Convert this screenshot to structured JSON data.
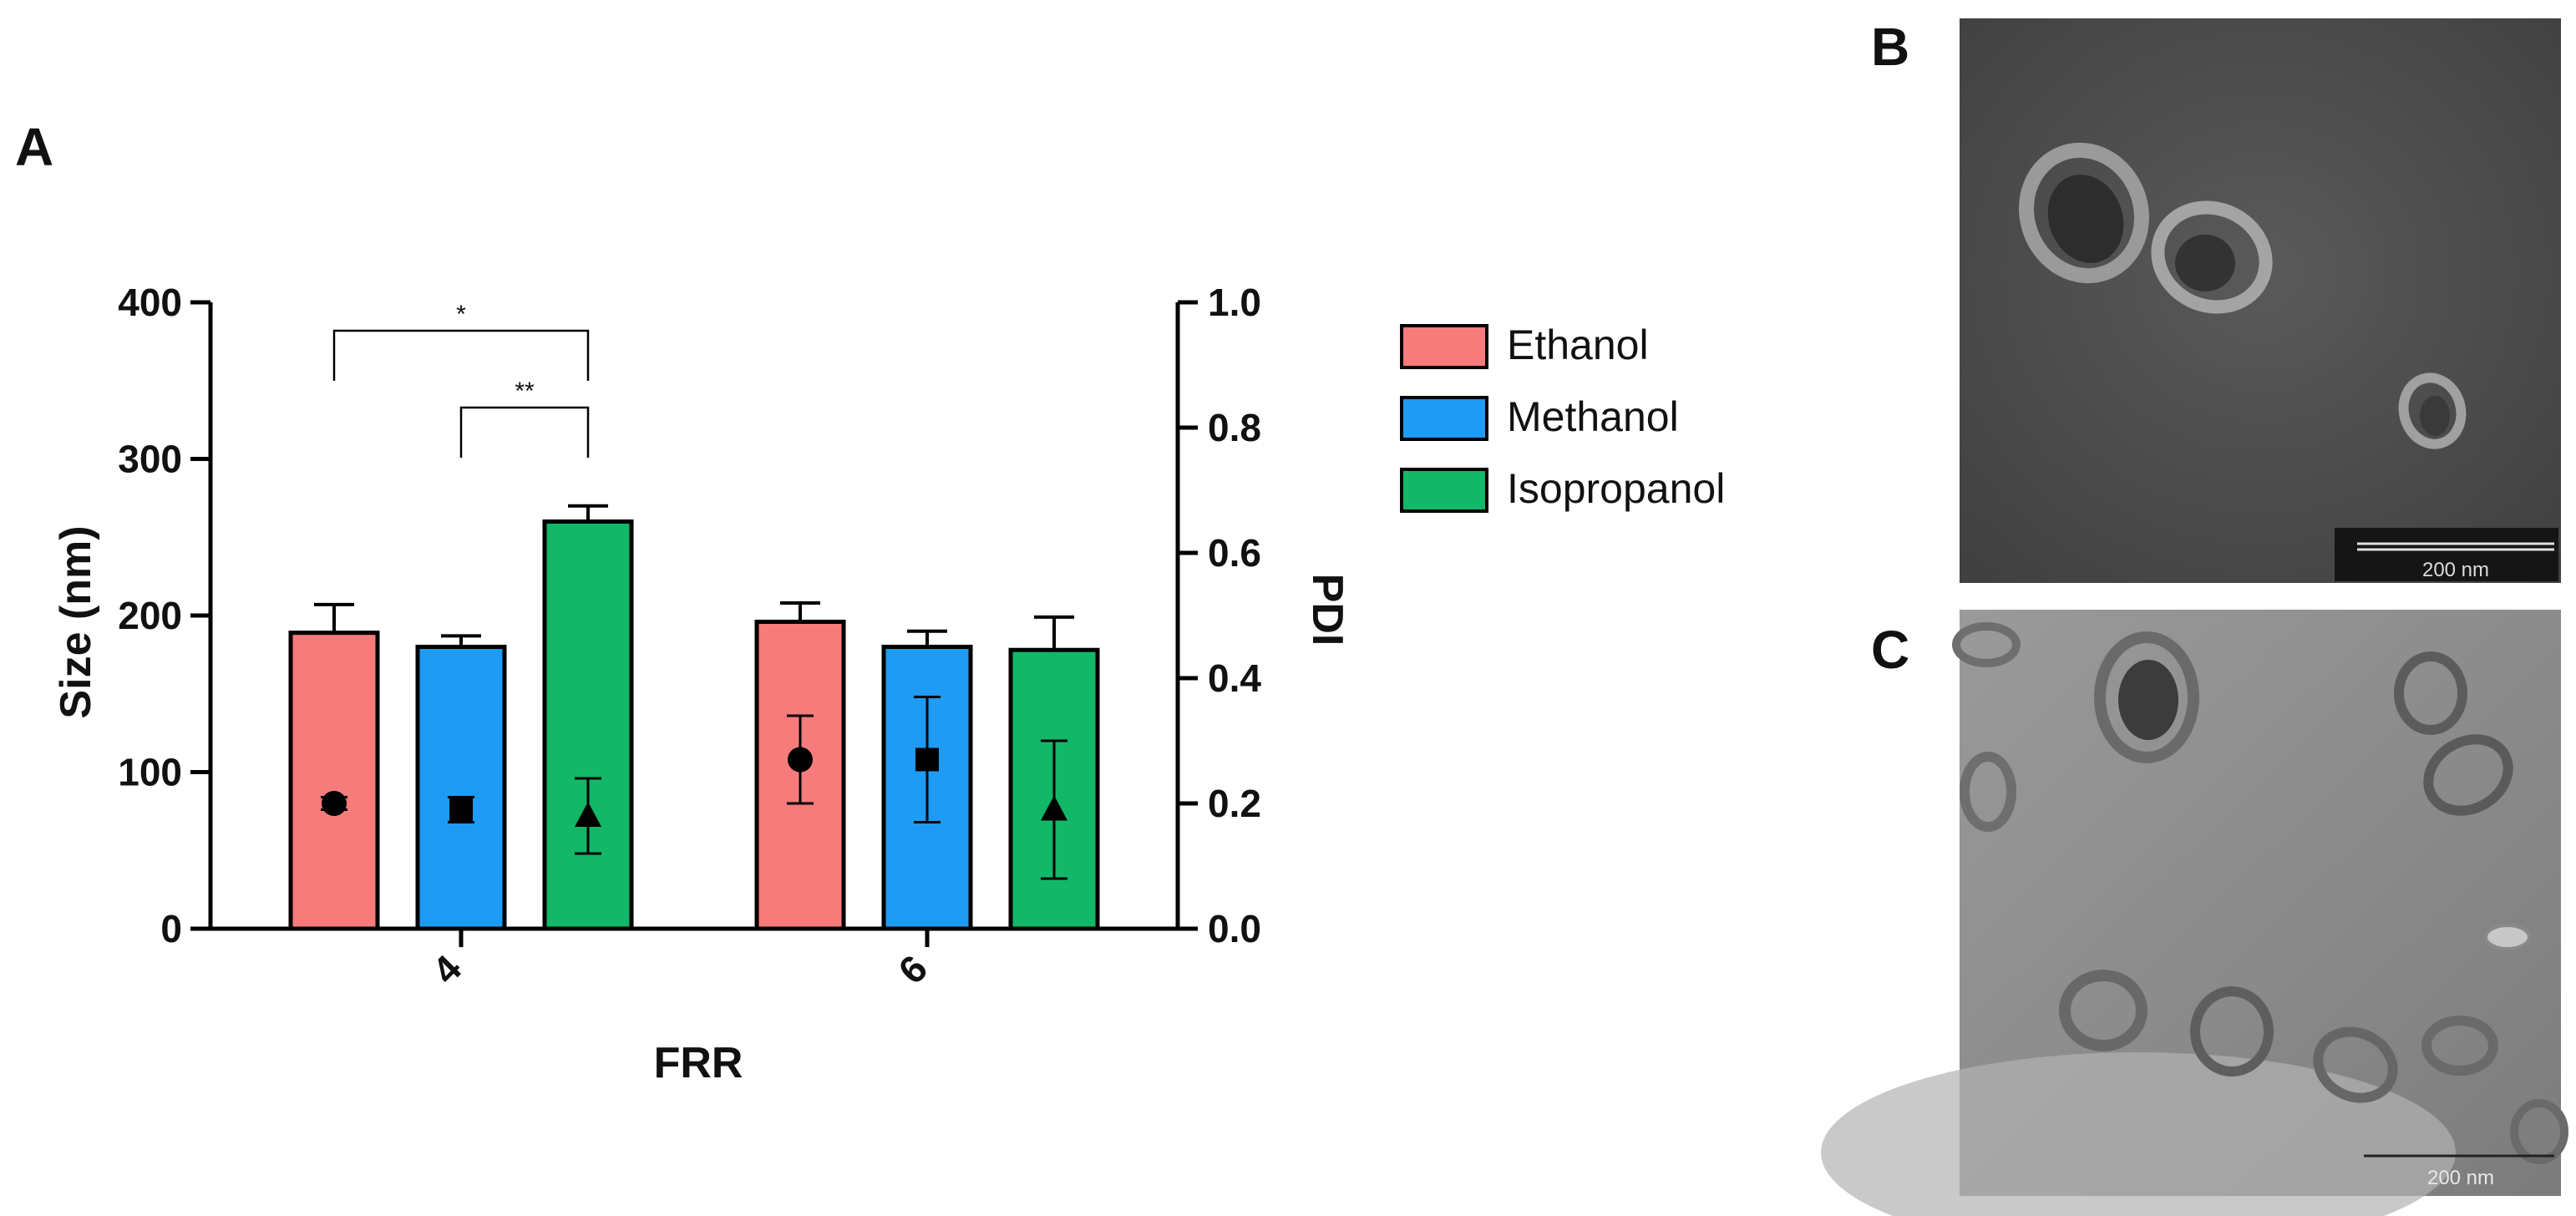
{
  "panels": {
    "a_label": "A",
    "b_label": "B",
    "c_label": "C"
  },
  "colors": {
    "Ethanol": "#f87b7b",
    "Methanol": "#1e9bf5",
    "Isopropanol": "#12b867"
  },
  "chart_data": {
    "type": "bar",
    "xlabel": "FRR",
    "ylabel": "Size (nm)",
    "y2label": "PDI",
    "categories": [
      "4",
      "6"
    ],
    "ylim": [
      0,
      400
    ],
    "yticks": [
      0,
      100,
      200,
      300,
      400
    ],
    "y2lim": [
      0.0,
      1.0
    ],
    "y2ticks": [
      "0.0",
      "0.2",
      "0.4",
      "0.6",
      "0.8",
      "1.0"
    ],
    "legend": [
      "Ethanol",
      "Methanol",
      "Isopropanol"
    ],
    "series": [
      {
        "name": "Ethanol",
        "size": [
          189,
          196
        ],
        "size_err": [
          18,
          12
        ],
        "pdi": [
          0.2,
          0.27
        ],
        "pdi_err": [
          0.01,
          0.07
        ],
        "marker": "circle"
      },
      {
        "name": "Methanol",
        "size": [
          180,
          180
        ],
        "size_err": [
          7,
          10
        ],
        "pdi": [
          0.19,
          0.27
        ],
        "pdi_err": [
          0.02,
          0.1
        ],
        "marker": "square"
      },
      {
        "name": "Isopropanol",
        "size": [
          260,
          178
        ],
        "size_err": [
          10,
          21
        ],
        "pdi": [
          0.18,
          0.19
        ],
        "pdi_err": [
          0.06,
          0.11
        ],
        "marker": "triangle"
      }
    ],
    "significance": [
      {
        "category": "4",
        "from": "Ethanol",
        "to": "Isopropanol",
        "label": "*"
      },
      {
        "category": "4",
        "from": "Methanol",
        "to": "Isopropanol",
        "label": "**"
      }
    ]
  },
  "micrographs": {
    "b_scale": "200 nm",
    "c_scale": "200 nm"
  }
}
